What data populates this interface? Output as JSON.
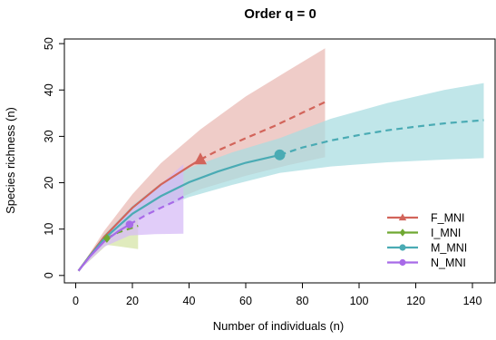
{
  "chart_data": {
    "type": "line",
    "title": "Order q = 0",
    "xlabel": "Number of individuals (n)",
    "ylabel": "Species richness (n)",
    "xlim": [
      -4,
      148
    ],
    "ylim": [
      -1.6,
      51
    ],
    "xticks": [
      0,
      20,
      40,
      60,
      80,
      100,
      120,
      140
    ],
    "yticks": [
      0,
      10,
      20,
      30,
      40,
      50
    ],
    "legend_position": "bottom-right",
    "series": [
      {
        "name": "F_MNI",
        "color": "#d2645a",
        "band_color": "#e9b9b3",
        "marker": "triangle",
        "observed": {
          "x": 44,
          "y": 25
        },
        "interpolated": [
          [
            1,
            1
          ],
          [
            5,
            4.3
          ],
          [
            10,
            8.3
          ],
          [
            20,
            14.6
          ],
          [
            30,
            19.6
          ],
          [
            40,
            23.5
          ],
          [
            44,
            25
          ]
        ],
        "extrapolated": [
          [
            44,
            25
          ],
          [
            50,
            26.9
          ],
          [
            60,
            29.6
          ],
          [
            70,
            32.2
          ],
          [
            80,
            35.1
          ],
          [
            88,
            37.4
          ]
        ],
        "band": [
          [
            1,
            1,
            1
          ],
          [
            10,
            9.6,
            7.2
          ],
          [
            20,
            17.5,
            11.7
          ],
          [
            30,
            24.2,
            15.1
          ],
          [
            44,
            31.5,
            18.6
          ],
          [
            60,
            38.6,
            21.5
          ],
          [
            75,
            44.2,
            23.8
          ],
          [
            88,
            49.0,
            25.5
          ]
        ]
      },
      {
        "name": "I_MNI",
        "color": "#6fa832",
        "band_color": "#d4e3a3",
        "marker": "diamond",
        "observed": {
          "x": 11,
          "y": 8
        },
        "interpolated": [
          [
            1,
            1
          ],
          [
            5,
            4.3
          ],
          [
            11,
            8
          ]
        ],
        "extrapolated": [
          [
            11,
            8
          ],
          [
            15,
            9.3
          ],
          [
            22,
            10.7
          ]
        ],
        "band": [
          [
            1,
            1,
            1
          ],
          [
            11,
            9.4,
            6.6
          ],
          [
            16,
            11.9,
            6.2
          ],
          [
            22,
            14.0,
            5.7
          ]
        ]
      },
      {
        "name": "M_MNI",
        "color": "#4aabb4",
        "band_color": "#a7dce0",
        "marker": "circle",
        "observed": {
          "x": 72,
          "y": 26
        },
        "interpolated": [
          [
            1,
            1
          ],
          [
            5,
            4.2
          ],
          [
            10,
            7.9
          ],
          [
            20,
            13.3
          ],
          [
            30,
            17.1
          ],
          [
            40,
            20.1
          ],
          [
            50,
            22.4
          ],
          [
            60,
            24.3
          ],
          [
            72,
            26
          ]
        ],
        "extrapolated": [
          [
            72,
            26
          ],
          [
            80,
            27.6
          ],
          [
            90,
            29.1
          ],
          [
            100,
            30.3
          ],
          [
            110,
            31.3
          ],
          [
            120,
            32.1
          ],
          [
            130,
            32.8
          ],
          [
            144,
            33.5
          ]
        ],
        "band": [
          [
            1,
            1,
            1
          ],
          [
            10,
            8.8,
            7.1
          ],
          [
            20,
            15.1,
            11.6
          ],
          [
            30,
            19.9,
            14.5
          ],
          [
            40,
            23.2,
            16.9
          ],
          [
            55,
            26.5,
            19.5
          ],
          [
            72,
            29.6,
            22.1
          ],
          [
            90,
            33.8,
            23.5
          ],
          [
            110,
            37.2,
            24.4
          ],
          [
            130,
            40.0,
            25.0
          ],
          [
            144,
            41.5,
            25.3
          ]
        ]
      },
      {
        "name": "N_MNI",
        "color": "#a86ae8",
        "band_color": "#d6baf7",
        "marker": "circle",
        "observed": {
          "x": 19,
          "y": 11
        },
        "interpolated": [
          [
            1,
            1
          ],
          [
            5,
            4.1
          ],
          [
            10,
            7.3
          ],
          [
            15,
            9.5
          ],
          [
            19,
            11
          ]
        ],
        "extrapolated": [
          [
            19,
            11
          ],
          [
            25,
            13.1
          ],
          [
            30,
            14.6
          ],
          [
            35,
            16.0
          ],
          [
            38,
            17
          ]
        ],
        "band": [
          [
            1,
            1,
            1
          ],
          [
            10,
            8.5,
            6.2
          ],
          [
            19,
            13.6,
            8.6
          ],
          [
            28,
            18.6,
            8.9
          ],
          [
            38,
            24.0,
            9.0
          ]
        ]
      }
    ]
  }
}
